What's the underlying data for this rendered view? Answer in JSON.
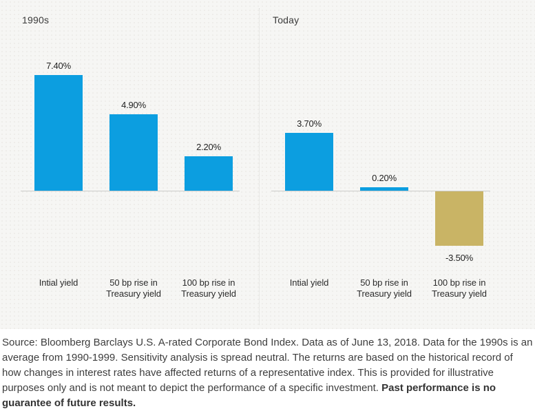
{
  "colors": {
    "positive_bar": "#0c9ee0",
    "negative_bar": "#c9b465",
    "axis_line": "#cbcbc9",
    "chart_background": "#f6f6f4",
    "label_text": "#1f1f1f"
  },
  "chart_data": [
    {
      "type": "bar",
      "title": "1990s",
      "categories": [
        "Intial yield",
        "50 bp rise in\nTreasury yield",
        "100 bp rise in\nTreasury yield"
      ],
      "values": [
        7.4,
        4.9,
        2.2
      ],
      "value_labels": [
        "7.40%",
        "4.90%",
        "2.20%"
      ],
      "unit": "%",
      "xlabel": "",
      "ylabel": "",
      "ylim": [
        -4,
        8
      ],
      "grid": false,
      "legend": "none",
      "bar_color": "#0c9ee0",
      "negative_bar_color": "#c9b465"
    },
    {
      "type": "bar",
      "title": "Today",
      "categories": [
        "Intial yield",
        "50 bp rise in\nTreasury yield",
        "100 bp rise in\nTreasury yield"
      ],
      "values": [
        3.7,
        0.2,
        -3.5
      ],
      "value_labels": [
        "3.70%",
        "0.20%",
        "-3.50%"
      ],
      "unit": "%",
      "xlabel": "",
      "ylabel": "",
      "ylim": [
        -4,
        8
      ],
      "grid": false,
      "legend": "none",
      "bar_color": "#0c9ee0",
      "negative_bar_color": "#c9b465"
    }
  ],
  "footer": {
    "source_text": "Source: Bloomberg Barclays U.S. A-rated Corporate Bond Index. Data as of June 13, 2018. Data for the 1990s is an average from 1990-1999. Sensitivity analysis is spread neutral. The returns are based on the historical record of how changes in interest rates have affected returns of a representative index. This is provided for illustrative purposes only and is not meant to depict the performance of a specific investment. ",
    "bold_text": "Past performance is no guarantee of future results."
  }
}
